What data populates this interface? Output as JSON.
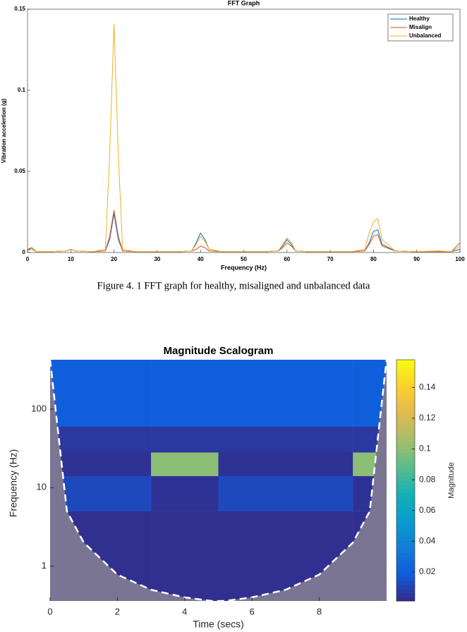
{
  "caption": "Figure 4. 1 FFT graph for healthy, misaligned and unbalanced data",
  "chart_data": [
    {
      "type": "line",
      "title": "FFT Graph",
      "x_label": "Frequency (Hz)",
      "y_label": "Vibration accelertion (g)",
      "x": [
        0,
        1,
        2,
        5,
        9,
        10,
        11,
        15,
        18,
        19,
        20,
        21,
        22,
        25,
        30,
        35,
        38,
        39,
        40,
        41,
        42,
        45,
        50,
        55,
        58,
        59,
        60,
        61,
        62,
        65,
        70,
        75,
        78,
        79,
        80,
        81,
        82,
        85,
        90,
        95,
        98,
        100
      ],
      "series": [
        {
          "name": "Healthy",
          "color": "#0072bd",
          "values": [
            0.001,
            0.003,
            0.0005,
            0.0005,
            0.001,
            0.002,
            0.001,
            0.0005,
            0.001,
            0.008,
            0.024,
            0.008,
            0.001,
            0.0005,
            0.0005,
            0.0005,
            0.001,
            0.006,
            0.012,
            0.008,
            0.002,
            0.0005,
            0.0005,
            0.0005,
            0.001,
            0.004,
            0.008,
            0.005,
            0.001,
            0.0005,
            0.0005,
            0.0005,
            0.001,
            0.006,
            0.013,
            0.014,
            0.005,
            0.001,
            0.0005,
            0.001,
            0.0005,
            0.002
          ]
        },
        {
          "name": "Misalign",
          "color": "#d95319",
          "values": [
            0.002,
            0.003,
            0.0005,
            0.0005,
            0.001,
            0.002,
            0.001,
            0.0005,
            0.001,
            0.01,
            0.026,
            0.01,
            0.001,
            0.0005,
            0.0005,
            0.0005,
            0.001,
            0.002,
            0.004,
            0.003,
            0.001,
            0.0005,
            0.0005,
            0.0005,
            0.001,
            0.003,
            0.006,
            0.004,
            0.001,
            0.0005,
            0.0005,
            0.0005,
            0.001,
            0.005,
            0.01,
            0.011,
            0.004,
            0.001,
            0.0005,
            0.0005,
            0.0005,
            0.006
          ]
        },
        {
          "name": "Unbalanced",
          "color": "#edb120",
          "values": [
            0.001,
            0.002,
            0.0005,
            0.0005,
            0.001,
            0.002,
            0.001,
            0.0005,
            0.002,
            0.06,
            0.141,
            0.06,
            0.002,
            0.0005,
            0.0005,
            0.0005,
            0.001,
            0.005,
            0.01,
            0.007,
            0.002,
            0.0005,
            0.0005,
            0.0005,
            0.001,
            0.005,
            0.009,
            0.006,
            0.001,
            0.0005,
            0.0005,
            0.0005,
            0.002,
            0.012,
            0.019,
            0.021,
            0.008,
            0.001,
            0.0005,
            0.001,
            0.0005,
            0.004
          ]
        }
      ],
      "xlim": [
        0,
        100
      ],
      "xticks": [
        0,
        10,
        20,
        30,
        40,
        50,
        60,
        70,
        80,
        90,
        100
      ],
      "ylim": [
        0,
        0.15
      ],
      "yticks": [
        0,
        0.05,
        0.1,
        0.15
      ],
      "legend": "upper right"
    },
    {
      "type": "heatmap",
      "title": "Magnitude Scalogram",
      "x_label": "Time (secs)",
      "y_label": "Frequency (Hz)",
      "colorbar_label": "Magnitude",
      "x_edges": [
        0,
        3,
        5,
        9,
        10
      ],
      "y_edges": [
        0.36,
        5,
        14,
        28,
        60,
        425
      ],
      "z": [
        [
          0.003,
          0.003,
          0.003,
          0.003
        ],
        [
          0.012,
          0.004,
          0.012,
          0.004
        ],
        [
          0.004,
          0.1,
          0.004,
          0.1
        ],
        [
          0.006,
          0.006,
          0.006,
          0.006
        ],
        [
          0.02,
          0.02,
          0.02,
          0.02
        ]
      ],
      "coi": {
        "x": [
          0,
          0.5,
          1,
          2,
          3,
          4,
          4.8,
          5.2,
          6,
          7,
          8,
          9,
          9.5,
          10
        ],
        "y": [
          425,
          5,
          2,
          0.78,
          0.5,
          0.4,
          0.36,
          0.36,
          0.4,
          0.5,
          0.78,
          2,
          5,
          425
        ]
      },
      "xlim": [
        0,
        10
      ],
      "xticks": [
        0,
        2,
        4,
        6,
        8
      ],
      "ylim": [
        0.36,
        425
      ],
      "yticks": [
        1,
        10,
        100
      ],
      "log_y": true,
      "clim": [
        0.0012,
        0.158
      ],
      "cticks": [
        0.02,
        0.04,
        0.06,
        0.08,
        0.1,
        0.12,
        0.14
      ]
    }
  ]
}
